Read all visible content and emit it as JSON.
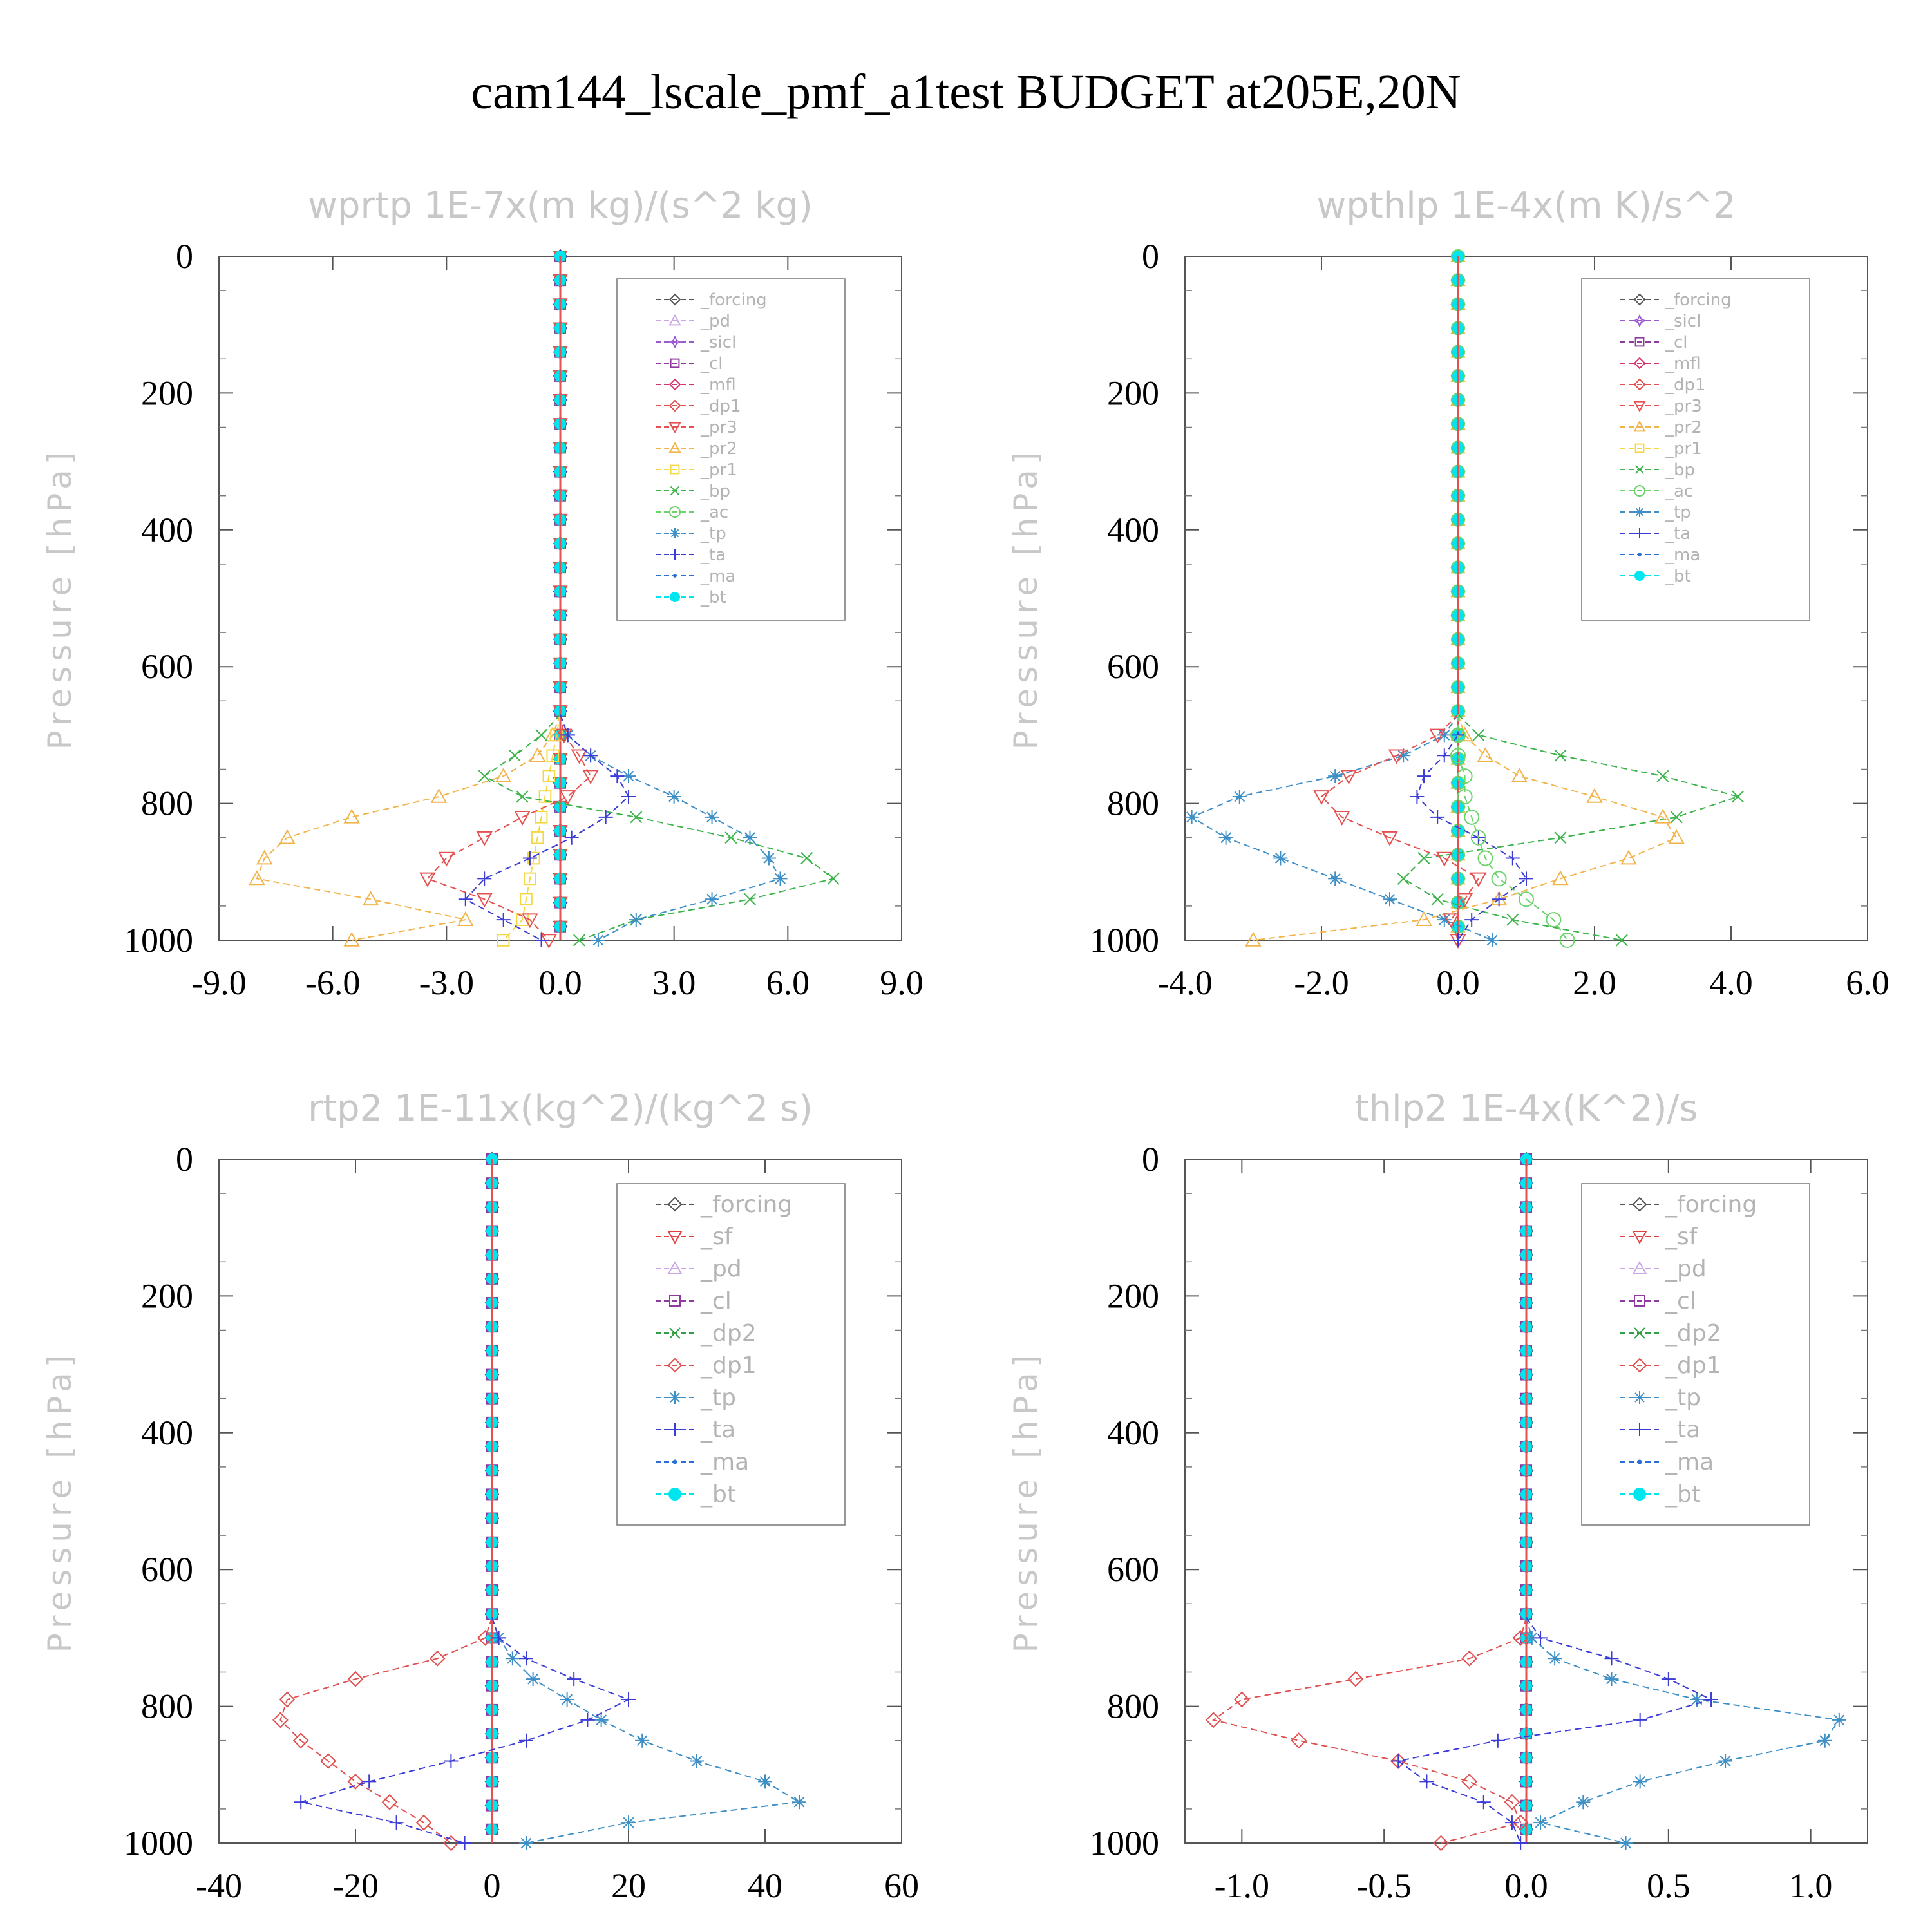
{
  "title": "cam144_lscale_pmf_a1test  BUDGET at205E,20N",
  "ylabel": "Pressure [hPa]",
  "colors": {
    "_forcing": "#555555",
    "_pd": "#c9a6e6",
    "_sicl": "#9b59d0",
    "_cl": "#8e3a9e",
    "_mfl": "#d6336c",
    "_dp1": "#e05050",
    "_pr3": "#e65050",
    "_pr2": "#f2b44a",
    "_pr1": "#f5d742",
    "_bp": "#3cb44b",
    "_ac": "#6ad36a",
    "_tp": "#3d8fc6",
    "_ta": "#3b3bd6",
    "_ma": "#2a6fd6",
    "_bt": "#00e5ee",
    "_sf": "#e04040",
    "_dp2": "#2f9e44"
  },
  "chart_data": [
    {
      "type": "line",
      "title": "wprtp   1E-7x(m kg)/(s^2 kg)",
      "ylabel": "Pressure [hPa]",
      "xlim": [
        -9,
        9
      ],
      "ylim": [
        1000,
        0
      ],
      "xticks": [
        "-9.0",
        "-6.0",
        "-3.0",
        "0.0",
        "3.0",
        "6.0",
        "9.0"
      ],
      "yticks": [
        "0",
        "200",
        "400",
        "600",
        "800",
        "1000"
      ],
      "legend": [
        "_forcing",
        "_pd",
        "_sicl",
        "_cl",
        "_mfl",
        "_dp1",
        "_pr3",
        "_pr2",
        "_pr1",
        "_bp",
        "_ac",
        "_tp",
        "_ta",
        "_ma",
        "_bt"
      ],
      "p": [
        700,
        730,
        760,
        790,
        820,
        850,
        880,
        910,
        940,
        970,
        1000
      ],
      "series": [
        {
          "name": "_pr2",
          "x": [
            -0.2,
            -0.6,
            -1.5,
            -3.2,
            -5.5,
            -7.2,
            -7.8,
            -8.0,
            -5.0,
            -2.5,
            -5.5
          ]
        },
        {
          "name": "_pr1",
          "x": [
            -0.1,
            -0.2,
            -0.3,
            -0.4,
            -0.5,
            -0.6,
            -0.7,
            -0.8,
            -0.9,
            -1.0,
            -1.5
          ]
        },
        {
          "name": "_pr3",
          "x": [
            0.1,
            0.5,
            0.8,
            0.2,
            -1.0,
            -2.0,
            -3.0,
            -3.5,
            -2.0,
            -0.8,
            -0.3
          ]
        },
        {
          "name": "_bp",
          "x": [
            -0.5,
            -1.2,
            -2.0,
            -1.0,
            2.0,
            4.5,
            6.5,
            7.2,
            5.0,
            2.0,
            0.5
          ]
        },
        {
          "name": "_tp",
          "x": [
            0.2,
            0.8,
            1.8,
            3.0,
            4.0,
            5.0,
            5.5,
            5.8,
            4.0,
            2.0,
            1.0
          ]
        },
        {
          "name": "_ta",
          "x": [
            0.2,
            0.8,
            1.5,
            1.8,
            1.2,
            0.3,
            -0.8,
            -2.0,
            -2.5,
            -1.5,
            -0.5
          ]
        }
      ]
    },
    {
      "type": "line",
      "title": "wpthlp   1E-4x(m K)/s^2",
      "ylabel": "Pressure [hPa]",
      "xlim": [
        -4,
        6
      ],
      "ylim": [
        1000,
        0
      ],
      "xticks": [
        "-4.0",
        "-2.0",
        "0.0",
        "2.0",
        "4.0",
        "6.0"
      ],
      "yticks": [
        "0",
        "200",
        "400",
        "600",
        "800",
        "1000"
      ],
      "legend": [
        "_forcing",
        "_sicl",
        "_cl",
        "_mfl",
        "_dp1",
        "_pr3",
        "_pr2",
        "_pr1",
        "_bp",
        "_ac",
        "_tp",
        "_ta",
        "_ma",
        "_bt"
      ],
      "p": [
        700,
        730,
        760,
        790,
        820,
        850,
        880,
        910,
        940,
        970,
        1000
      ],
      "series": [
        {
          "name": "_bp",
          "x": [
            0.3,
            1.5,
            3.0,
            4.1,
            3.2,
            1.5,
            -0.5,
            -0.8,
            -0.3,
            0.8,
            2.4
          ]
        },
        {
          "name": "_pr2",
          "x": [
            0.1,
            0.4,
            0.9,
            2.0,
            3.0,
            3.2,
            2.5,
            1.5,
            0.6,
            -0.5,
            -3.0
          ]
        },
        {
          "name": "_tp",
          "x": [
            -0.2,
            -0.8,
            -1.8,
            -3.2,
            -3.9,
            -3.4,
            -2.6,
            -1.8,
            -1.0,
            -0.2,
            0.5
          ]
        },
        {
          "name": "_pr3",
          "x": [
            -0.3,
            -0.9,
            -1.6,
            -2.0,
            -1.7,
            -1.0,
            -0.2,
            0.3,
            0.1,
            -0.1,
            0.0
          ]
        },
        {
          "name": "_ta",
          "x": [
            0.0,
            -0.2,
            -0.5,
            -0.6,
            -0.3,
            0.3,
            0.8,
            1.0,
            0.6,
            0.2,
            0.0
          ]
        },
        {
          "name": "_ac",
          "x": [
            0.0,
            0.0,
            0.1,
            0.1,
            0.2,
            0.3,
            0.4,
            0.6,
            1.0,
            1.4,
            1.6
          ]
        }
      ]
    },
    {
      "type": "line",
      "title": "rtp2   1E-11x(kg^2)/(kg^2 s)",
      "ylabel": "Pressure [hPa]",
      "xlim": [
        -40,
        60
      ],
      "ylim": [
        1000,
        0
      ],
      "xticks": [
        "-40",
        "-20",
        "0",
        "20",
        "40",
        "60"
      ],
      "yticks": [
        "0",
        "200",
        "400",
        "600",
        "800",
        "1000"
      ],
      "legend": [
        "_forcing",
        "_sf",
        "_pd",
        "_cl",
        "_dp2",
        "_dp1",
        "_tp",
        "_ta",
        "_ma",
        "_bt"
      ],
      "p": [
        700,
        730,
        760,
        790,
        820,
        850,
        880,
        910,
        940,
        970,
        1000
      ],
      "series": [
        {
          "name": "_dp1",
          "x": [
            -1,
            -8,
            -20,
            -30,
            -31,
            -28,
            -24,
            -20,
            -15,
            -10,
            -6
          ]
        },
        {
          "name": "_tp",
          "x": [
            1,
            3,
            6,
            11,
            16,
            22,
            30,
            40,
            45,
            20,
            5
          ]
        },
        {
          "name": "_ta",
          "x": [
            1,
            5,
            12,
            20,
            14,
            5,
            -6,
            -18,
            -28,
            -14,
            -4
          ]
        }
      ]
    },
    {
      "type": "line",
      "title": "thlp2   1E-4x(K^2)/s",
      "ylabel": "Pressure [hPa]",
      "xlim": [
        -1.2,
        1.2
      ],
      "ylim": [
        1000,
        0
      ],
      "xticks": [
        "-1.0",
        "-0.5",
        "0.0",
        "0.5",
        "1.0"
      ],
      "yticks": [
        "0",
        "200",
        "400",
        "600",
        "800",
        "1000"
      ],
      "legend": [
        "_forcing",
        "_sf",
        "_pd",
        "_cl",
        "_dp2",
        "_dp1",
        "_tp",
        "_ta",
        "_ma",
        "_bt"
      ],
      "p": [
        700,
        730,
        760,
        790,
        820,
        850,
        880,
        910,
        940,
        970,
        1000
      ],
      "series": [
        {
          "name": "_dp1",
          "x": [
            -0.02,
            -0.2,
            -0.6,
            -1.0,
            -1.1,
            -0.8,
            -0.45,
            -0.2,
            -0.05,
            -0.02,
            -0.3
          ]
        },
        {
          "name": "_tp",
          "x": [
            0.02,
            0.1,
            0.3,
            0.6,
            1.1,
            1.05,
            0.7,
            0.4,
            0.2,
            0.05,
            0.35
          ]
        },
        {
          "name": "_ta",
          "x": [
            0.05,
            0.3,
            0.5,
            0.65,
            0.4,
            -0.1,
            -0.45,
            -0.35,
            -0.15,
            -0.05,
            -0.02
          ]
        }
      ]
    }
  ]
}
